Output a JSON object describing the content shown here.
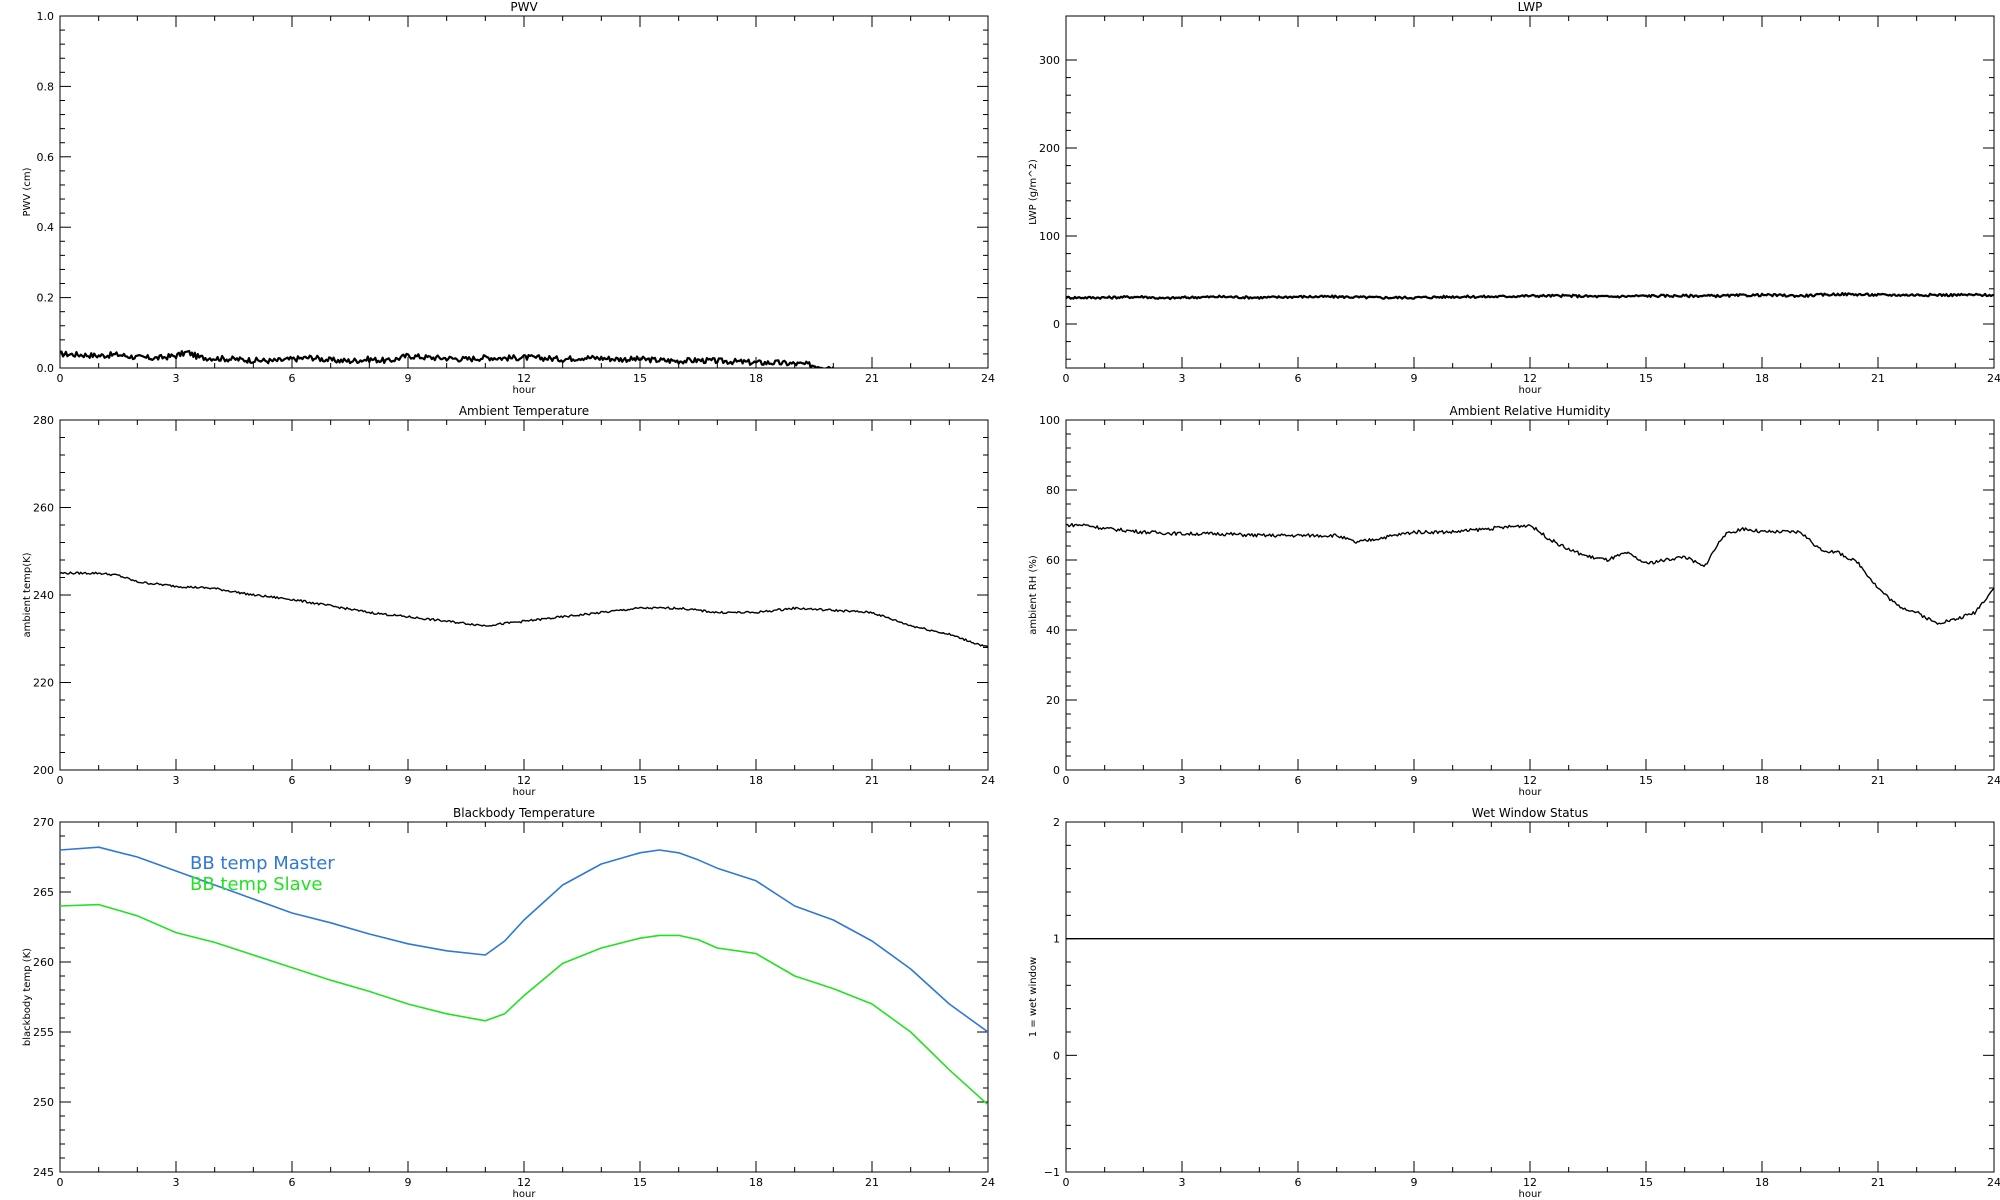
{
  "chart_data": [
    {
      "type": "line",
      "title": "PWV",
      "xlabel": "hour",
      "ylabel": "PWV (cm)",
      "xlim": [
        0,
        24
      ],
      "ylim": [
        0,
        1.0
      ],
      "xticks": [
        0,
        3,
        6,
        9,
        12,
        15,
        18,
        21,
        24
      ],
      "yticks": [
        0.0,
        0.2,
        0.4,
        0.6,
        0.8,
        1.0
      ],
      "ytick_labels": [
        "0.0",
        "0.2",
        "0.4",
        "0.6",
        "0.8",
        "1.0"
      ],
      "series": [
        {
          "color": "#000000",
          "noise": 0.008,
          "stroke": 2.2,
          "x": [
            0,
            0.5,
            1,
            1.5,
            2,
            2.5,
            3,
            3.3,
            3.6,
            4,
            4.5,
            5,
            5.5,
            6,
            6.5,
            7,
            7.5,
            8,
            8.5,
            9,
            9.5,
            10,
            10.5,
            11,
            11.5,
            12,
            12.5,
            13,
            13.5,
            14,
            14.5,
            15,
            15.5,
            16,
            16.5,
            17,
            17.5,
            18,
            18.5,
            19,
            19.3,
            19.6,
            20
          ],
          "y": [
            0.04,
            0.038,
            0.035,
            0.038,
            0.03,
            0.028,
            0.035,
            0.045,
            0.03,
            0.028,
            0.025,
            0.022,
            0.02,
            0.025,
            0.03,
            0.022,
            0.02,
            0.025,
            0.02,
            0.035,
            0.03,
            0.028,
            0.025,
            0.03,
            0.028,
            0.03,
            0.028,
            0.025,
            0.03,
            0.028,
            0.025,
            0.025,
            0.022,
            0.02,
            0.022,
            0.02,
            0.018,
            0.015,
            0.015,
            0.012,
            0.01,
            0.006,
            0.003
          ]
        }
      ]
    },
    {
      "type": "line",
      "title": "LWP",
      "xlabel": "hour",
      "ylabel": "LWP (g/m^2)",
      "xlim": [
        0,
        24
      ],
      "ylim": [
        -50,
        350
      ],
      "xticks": [
        0,
        3,
        6,
        9,
        12,
        15,
        18,
        21,
        24
      ],
      "yticks": [
        0,
        100,
        200,
        300
      ],
      "ytick_labels": [
        "0",
        "100",
        "200",
        "300"
      ],
      "series": [
        {
          "color": "#000000",
          "noise": 1.4,
          "stroke": 2.2,
          "x": [
            0,
            1,
            2,
            2.5,
            3,
            4,
            5,
            6,
            7,
            8,
            9,
            10,
            11,
            12,
            13,
            14,
            15,
            16,
            17,
            18,
            19,
            20,
            21,
            22,
            23,
            24
          ],
          "y": [
            30,
            30,
            31,
            29,
            30,
            31,
            30,
            31,
            31,
            30,
            30,
            31,
            31,
            32,
            32,
            31,
            32,
            32,
            32,
            33,
            32,
            34,
            33,
            33,
            33,
            33
          ]
        }
      ]
    },
    {
      "type": "line",
      "title": "Ambient Temperature",
      "xlabel": "hour",
      "ylabel": "ambient temp(K)",
      "xlim": [
        0,
        24
      ],
      "ylim": [
        200,
        280
      ],
      "xticks": [
        0,
        3,
        6,
        9,
        12,
        15,
        18,
        21,
        24
      ],
      "yticks": [
        200,
        220,
        240,
        260,
        280
      ],
      "ytick_labels": [
        "200",
        "220",
        "240",
        "260",
        "280"
      ],
      "series": [
        {
          "color": "#000000",
          "noise": 0.25,
          "stroke": 1.4,
          "x": [
            0,
            0.5,
            1,
            1.5,
            2,
            3,
            4,
            5,
            6,
            7,
            8,
            9,
            10,
            11,
            12,
            13,
            14,
            15,
            16,
            17,
            18,
            19,
            20,
            21,
            22,
            23,
            24
          ],
          "y": [
            245,
            245,
            245,
            244.5,
            243,
            242,
            241.5,
            240,
            239,
            237.5,
            236,
            235,
            234,
            233,
            234,
            235,
            236,
            237,
            237,
            236,
            236,
            237,
            236.5,
            236,
            233,
            231,
            228
          ]
        }
      ]
    },
    {
      "type": "line",
      "title": "Ambient Relative Humidity",
      "xlabel": "hour",
      "ylabel": "ambient RH (%)",
      "xlim": [
        0,
        24
      ],
      "ylim": [
        0,
        100
      ],
      "xticks": [
        0,
        3,
        6,
        9,
        12,
        15,
        18,
        21,
        24
      ],
      "yticks": [
        0,
        20,
        40,
        60,
        80,
        100
      ],
      "ytick_labels": [
        "0",
        "20",
        "40",
        "60",
        "80",
        "100"
      ],
      "series": [
        {
          "color": "#000000",
          "noise": 0.5,
          "stroke": 1.4,
          "x": [
            0,
            0.5,
            1,
            2,
            3,
            4,
            5,
            6,
            7,
            7.5,
            8,
            9,
            10,
            11,
            12,
            12.5,
            13,
            13.5,
            14,
            14.5,
            15,
            15.5,
            16,
            16.5,
            17,
            17.5,
            18,
            18.5,
            19,
            19.5,
            20,
            20.5,
            21,
            21.5,
            22,
            22.5,
            23,
            23.5,
            24
          ],
          "y": [
            70,
            70,
            69,
            68,
            67.5,
            67.5,
            67,
            67,
            67,
            65,
            66,
            68,
            68,
            69,
            70,
            66,
            63,
            61,
            60,
            62,
            59,
            60,
            61,
            58,
            67,
            69,
            68,
            68,
            68,
            63,
            62,
            59,
            52,
            47,
            45,
            42,
            43,
            45,
            52
          ]
        }
      ]
    },
    {
      "type": "line",
      "title": "Blackbody Temperature",
      "xlabel": "hour",
      "ylabel": "blackbody temp (K)",
      "xlim": [
        0,
        24
      ],
      "ylim": [
        245,
        270
      ],
      "xticks": [
        0,
        3,
        6,
        9,
        12,
        15,
        18,
        21,
        24
      ],
      "yticks": [
        245,
        250,
        255,
        260,
        265,
        270
      ],
      "ytick_labels": [
        "245",
        "250",
        "255",
        "260",
        "265",
        "270"
      ],
      "legend_position": "top-left",
      "series": [
        {
          "name": "BB temp Master",
          "color": "#2f78d8",
          "noise": 0,
          "stroke": 1.6,
          "x": [
            0,
            1,
            2,
            3,
            4,
            5,
            6,
            7,
            8,
            9,
            10,
            11,
            11.5,
            12,
            13,
            14,
            15,
            15.5,
            16,
            16.5,
            17,
            18,
            19,
            20,
            21,
            22,
            23,
            24
          ],
          "y": [
            268,
            268.2,
            267.5,
            266.5,
            265.5,
            264.5,
            263.5,
            262.8,
            262,
            261.3,
            260.8,
            260.5,
            261.5,
            263,
            265.5,
            267,
            267.8,
            268,
            267.8,
            267.3,
            266.7,
            265.8,
            264,
            263,
            261.5,
            259.5,
            257,
            255
          ]
        },
        {
          "name": "BB temp Slave",
          "color": "#21e221",
          "noise": 0,
          "stroke": 1.6,
          "x": [
            0,
            1,
            2,
            3,
            4,
            5,
            6,
            7,
            8,
            9,
            10,
            11,
            11.5,
            12,
            13,
            14,
            15,
            15.5,
            16,
            16.5,
            17,
            18,
            19,
            20,
            21,
            22,
            23,
            24
          ],
          "y": [
            264,
            264.1,
            263.3,
            262.1,
            261.4,
            260.5,
            259.6,
            258.7,
            257.9,
            257,
            256.3,
            255.8,
            256.3,
            257.6,
            259.9,
            261,
            261.7,
            261.9,
            261.9,
            261.6,
            261,
            260.6,
            259,
            258.1,
            257,
            255,
            252.3,
            249.8
          ]
        }
      ]
    },
    {
      "type": "line",
      "title": "Wet Window Status",
      "xlabel": "hour",
      "ylabel": "1 = wet window",
      "xlim": [
        0,
        24
      ],
      "ylim": [
        -1,
        2
      ],
      "xticks": [
        0,
        3,
        6,
        9,
        12,
        15,
        18,
        21,
        24
      ],
      "yticks": [
        -1,
        0,
        1,
        2
      ],
      "ytick_labels": [
        "−1",
        "0",
        "1",
        "2"
      ],
      "series": [
        {
          "color": "#000000",
          "noise": 0,
          "stroke": 1.4,
          "x": [
            0,
            24
          ],
          "y": [
            1,
            1
          ]
        }
      ]
    }
  ]
}
